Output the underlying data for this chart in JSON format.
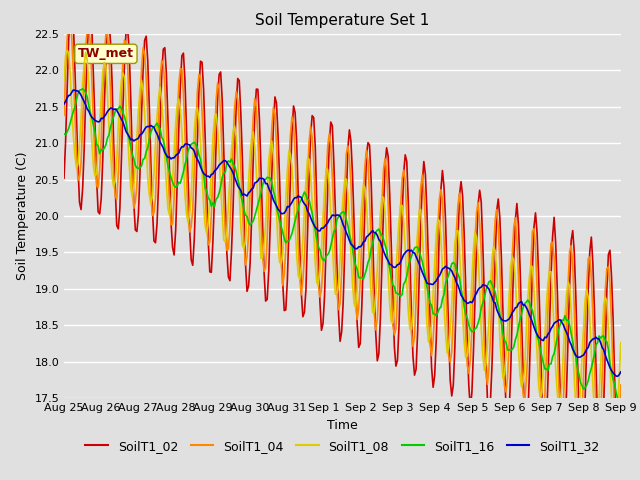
{
  "title": "Soil Temperature Set 1",
  "xlabel": "Time",
  "ylabel": "Soil Temperature (C)",
  "ylim": [
    17.5,
    22.5
  ],
  "yticks": [
    17.5,
    18.0,
    18.5,
    19.0,
    19.5,
    20.0,
    20.5,
    21.0,
    21.5,
    22.0,
    22.5
  ],
  "series_colors": {
    "SoilT1_02": "#cc0000",
    "SoilT1_04": "#ff8800",
    "SoilT1_08": "#ddcc00",
    "SoilT1_16": "#00cc00",
    "SoilT1_32": "#0000cc"
  },
  "x_tick_labels": [
    "Aug 25",
    "Aug 26",
    "Aug 27",
    "Aug 28",
    "Aug 29",
    "Aug 30",
    "Aug 31",
    "Sep 1",
    "Sep 2",
    "Sep 3",
    "Sep 4",
    "Sep 5",
    "Sep 6",
    "Sep 7",
    "Sep 8",
    "Sep 9"
  ],
  "annotation_text": "TW_met",
  "bg_color": "#e0e0e0",
  "grid_color": "#ffffff",
  "title_fontsize": 11,
  "axis_fontsize": 9,
  "tick_fontsize": 8,
  "legend_fontsize": 9,
  "linewidth": 1.2
}
